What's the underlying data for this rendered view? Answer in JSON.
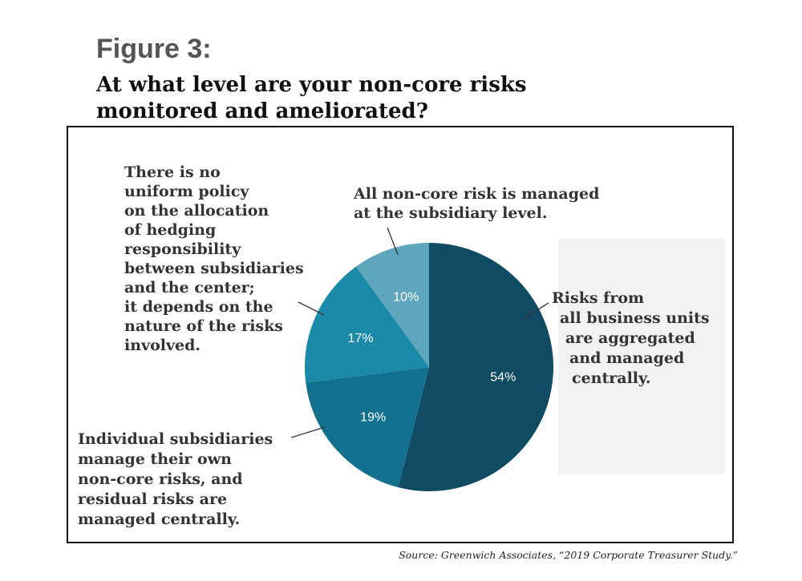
{
  "figure_label": "Figure 3:",
  "title_lines": [
    "At what level are your non-core risks",
    "monitored and ameliorated?"
  ],
  "source": "Source: Greenwich Associates, “2019 Corporate Treasurer Study.”",
  "chart_data": {
    "type": "pie",
    "title": "At what level are your non-core risks monitored and ameliorated?",
    "slices": [
      {
        "value": 54,
        "label": "54%",
        "color": "#0f4b63",
        "description_lines": [
          "Risks from",
          "all business units",
          "are aggregated",
          "and managed",
          "centrally."
        ]
      },
      {
        "value": 19,
        "label": "19%",
        "color": "#13708f",
        "description_lines": [
          "Individual subsidiaries",
          "manage their own",
          "non-core risks, and",
          "residual risks are",
          "managed centrally."
        ]
      },
      {
        "value": 17,
        "label": "17%",
        "color": "#1a89aa",
        "description_lines": [
          "There is no",
          "uniform policy",
          "on the allocation",
          "of hedging",
          "responsibility",
          "between subsidiaries",
          "and the center;",
          "it depends on the",
          "nature of the risks",
          "involved."
        ]
      },
      {
        "value": 10,
        "label": "10%",
        "color": "#5ea6bb",
        "description_lines": [
          "All non-core risk is managed",
          "at the subsidiary level."
        ]
      }
    ]
  }
}
